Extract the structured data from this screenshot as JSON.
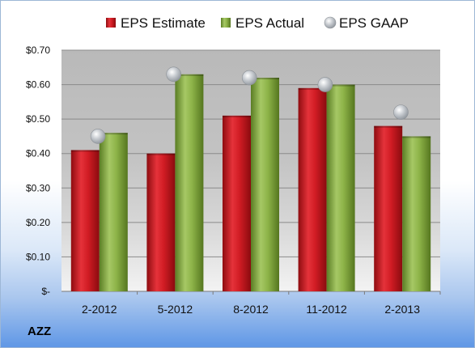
{
  "ticker": "AZZ",
  "chart_data": {
    "type": "bar",
    "categories": [
      "2-2012",
      "5-2012",
      "8-2012",
      "11-2012",
      "2-2013"
    ],
    "series": [
      {
        "name": "EPS Estimate",
        "kind": "bar",
        "color": "#c0141b",
        "values": [
          0.41,
          0.4,
          0.51,
          0.59,
          0.48
        ]
      },
      {
        "name": "EPS Actual",
        "kind": "bar",
        "color": "#7fa53a",
        "values": [
          0.46,
          0.63,
          0.62,
          0.6,
          0.45
        ]
      },
      {
        "name": "EPS GAAP",
        "kind": "marker",
        "color": "#b7bcc2",
        "values": [
          0.45,
          0.63,
          0.62,
          0.6,
          0.52
        ]
      }
    ],
    "ylim": [
      0,
      0.7
    ],
    "yticks": [
      0,
      0.1,
      0.2,
      0.3,
      0.4,
      0.5,
      0.6,
      0.7
    ],
    "ytick_labels": [
      "$-",
      "$0.10",
      "$0.20",
      "$0.30",
      "$0.40",
      "$0.50",
      "$0.60",
      "$0.70"
    ],
    "grid": true,
    "legend_position": "top"
  }
}
